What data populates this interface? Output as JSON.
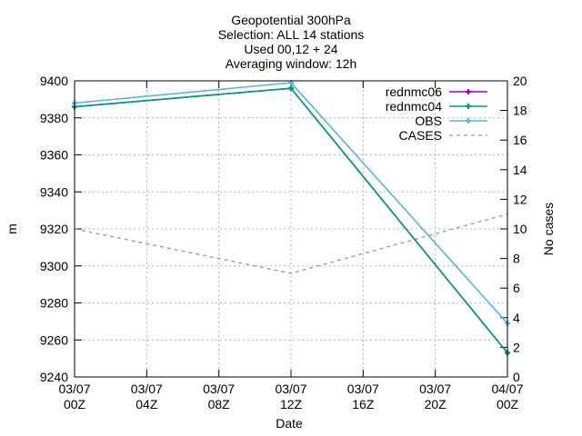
{
  "chart_data": {
    "type": "line",
    "title_lines": [
      "Geopotential 300hPa",
      "Selection: ALL      14 stations",
      "Used 00,12 + 24",
      "Averaging window: 12h"
    ],
    "xlabel": "Date",
    "ylabel": "m",
    "y2label": "No cases",
    "x_ticks": [
      {
        "h": 0,
        "date": "03/07",
        "hour": "00Z"
      },
      {
        "h": 4,
        "date": "03/07",
        "hour": "04Z"
      },
      {
        "h": 8,
        "date": "03/07",
        "hour": "08Z"
      },
      {
        "h": 12,
        "date": "03/07",
        "hour": "12Z"
      },
      {
        "h": 16,
        "date": "03/07",
        "hour": "16Z"
      },
      {
        "h": 20,
        "date": "03/07",
        "hour": "20Z"
      },
      {
        "h": 24,
        "date": "04/07",
        "hour": "00Z"
      }
    ],
    "xlim_hours": [
      0,
      24
    ],
    "ylim": [
      9240,
      9400
    ],
    "y_ticks": [
      9240,
      9260,
      9280,
      9300,
      9320,
      9340,
      9360,
      9380,
      9400
    ],
    "y2lim": [
      0,
      20
    ],
    "y2_ticks": [
      0,
      2,
      4,
      6,
      8,
      10,
      12,
      14,
      16,
      18,
      20
    ],
    "grid": true,
    "legend_position": "top-right",
    "series": [
      {
        "name": "rednmc06",
        "color": "#9400d3",
        "style": "solid-points",
        "axis": "left",
        "x_hours": [
          0,
          12,
          24
        ],
        "values": [
          9386,
          9396,
          9253
        ]
      },
      {
        "name": "rednmc04",
        "color": "#009e73",
        "style": "solid-points",
        "axis": "left",
        "x_hours": [
          0,
          12,
          24
        ],
        "values": [
          9386,
          9396,
          9253
        ]
      },
      {
        "name": "OBS",
        "color": "#56b4e9",
        "style": "solid-points",
        "axis": "left",
        "x_hours": [
          0,
          12,
          24
        ],
        "values": [
          9388,
          9399,
          9269
        ]
      },
      {
        "name": "CASES",
        "color": "#999999",
        "style": "dashed",
        "axis": "right",
        "x_hours": [
          0,
          12,
          24
        ],
        "values": [
          10,
          7,
          11
        ]
      }
    ]
  }
}
